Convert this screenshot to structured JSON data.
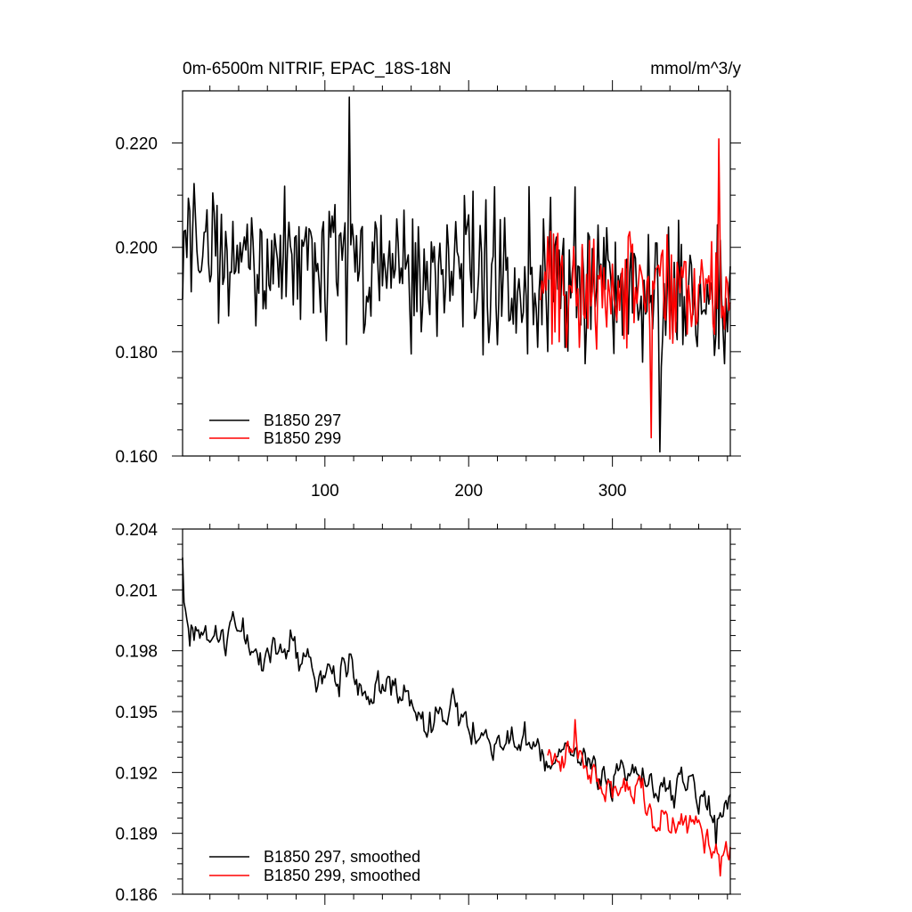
{
  "chart_data": [
    {
      "type": "line",
      "title_left": "0m-6500m NITRIF, EPAC_18S-18N",
      "title_right": "mmol/m^3/y",
      "xlabel": "",
      "ylabel": "",
      "xlim": [
        1,
        382
      ],
      "ylim": [
        0.16,
        0.23
      ],
      "x_ticks": [
        100,
        200,
        300
      ],
      "x_tick_labels": [
        "100",
        "200",
        "300"
      ],
      "y_ticks": [
        0.16,
        0.18,
        0.2,
        0.22
      ],
      "y_tick_labels": [
        "0.160",
        "0.180",
        "0.200",
        "0.220"
      ],
      "legend_position": "bottom-left",
      "series": [
        {
          "name": "B1850 297",
          "color": "#000000",
          "x_start": 1,
          "x_end": 382,
          "base": 0.2006,
          "trend": -0.0102,
          "amp": 0.0105,
          "seed": 297,
          "min": 0.1608,
          "max": 0.2288
        },
        {
          "name": "B1850 299",
          "color": "#ff0000",
          "x_start": 250,
          "x_end": 382,
          "base": 0.1925,
          "trend": -0.0015,
          "amp": 0.0098,
          "seed": 299,
          "min": 0.1635,
          "max": 0.2208
        }
      ]
    },
    {
      "type": "line",
      "title_left": "",
      "title_right": "",
      "xlabel": "",
      "ylabel": "",
      "xlim": [
        1,
        382
      ],
      "ylim": [
        0.186,
        0.204
      ],
      "x_ticks": [
        100,
        200,
        300
      ],
      "x_tick_labels": [],
      "y_ticks": [
        0.186,
        0.189,
        0.192,
        0.195,
        0.198,
        0.201,
        0.204
      ],
      "y_tick_labels": [
        "0.186",
        "0.189",
        "0.192",
        "0.195",
        "0.198",
        "0.201",
        "0.204"
      ],
      "legend_position": "bottom-left",
      "series": [
        {
          "name": "B1850 297, smoothed",
          "color": "#000000",
          "x_start": 1,
          "x_end": 382,
          "base": 0.1995,
          "trend": -0.0095,
          "amp": 0.0017,
          "seed": 1297,
          "min": 0.1883,
          "max": 0.2026
        },
        {
          "name": "B1850 299, smoothed",
          "color": "#ff0000",
          "x_start": 255,
          "x_end": 382,
          "base": 0.1935,
          "trend": -0.0055,
          "amp": 0.0015,
          "seed": 1299,
          "min": 0.1869,
          "max": 0.1946
        }
      ]
    }
  ]
}
